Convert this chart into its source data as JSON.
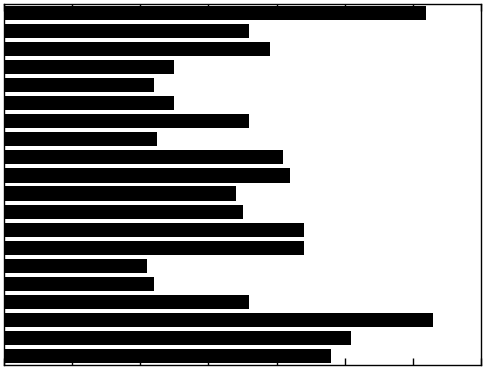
{
  "values": [
    6.2,
    3.6,
    3.9,
    2.5,
    2.2,
    2.5,
    3.6,
    2.25,
    4.1,
    4.2,
    3.4,
    3.5,
    4.4,
    4.4,
    2.1,
    2.2,
    3.6,
    6.3,
    5.1,
    4.8
  ],
  "bar_color": "#000000",
  "background_color": "#ffffff",
  "xlim": [
    0,
    7
  ],
  "bar_height": 0.78,
  "xtick_count": 8
}
